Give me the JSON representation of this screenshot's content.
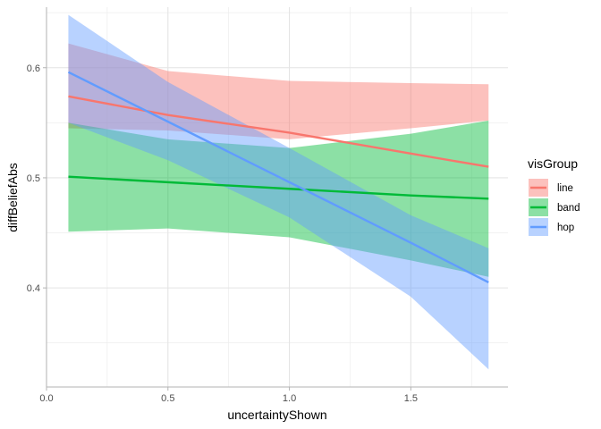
{
  "chart_data": {
    "type": "line",
    "xlabel": "uncertaintyShown",
    "ylabel": "diffBeliefAbs",
    "xlim": [
      0.0,
      1.9
    ],
    "ylim": [
      0.31,
      0.655
    ],
    "x_ticks": [
      0.0,
      0.5,
      1.0,
      1.5
    ],
    "x_tick_labels": [
      "0.0",
      "0.5",
      "1.0",
      "1.5"
    ],
    "y_ticks": [
      0.4,
      0.5,
      0.6
    ],
    "y_tick_labels": [
      "0.4",
      "0.5",
      "0.6"
    ],
    "grid": true,
    "legend": {
      "title": "visGroup",
      "position": "right"
    },
    "series": [
      {
        "name": "line",
        "color": "#F8766D",
        "x": [
          0.09,
          0.5,
          1.0,
          1.5,
          1.82
        ],
        "y": [
          0.574,
          0.557,
          0.541,
          0.522,
          0.51
        ],
        "ribbon_upper": [
          0.622,
          0.597,
          0.588,
          0.586,
          0.585
        ],
        "ribbon_lower": [
          0.545,
          0.543,
          0.535,
          0.545,
          0.552
        ]
      },
      {
        "name": "band",
        "color": "#00BA38",
        "x": [
          0.09,
          0.5,
          1.0,
          1.5,
          1.82
        ],
        "y": [
          0.501,
          0.496,
          0.49,
          0.484,
          0.481
        ],
        "ribbon_upper": [
          0.55,
          0.535,
          0.527,
          0.54,
          0.552
        ],
        "ribbon_lower": [
          0.451,
          0.454,
          0.446,
          0.425,
          0.41
        ]
      },
      {
        "name": "hop",
        "color": "#619CFF",
        "x": [
          0.09,
          0.5,
          1.0,
          1.5,
          1.82
        ],
        "y": [
          0.596,
          0.551,
          0.496,
          0.441,
          0.405
        ],
        "ribbon_upper": [
          0.648,
          0.587,
          0.527,
          0.466,
          0.436
        ],
        "ribbon_lower": [
          0.55,
          0.516,
          0.464,
          0.392,
          0.326
        ]
      }
    ]
  }
}
